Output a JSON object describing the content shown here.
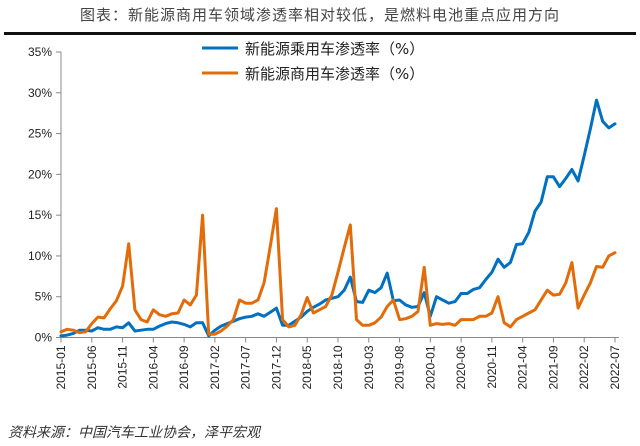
{
  "title": "图表：新能源商用车领域渗透率相对较低，是燃料电池重点应用方向",
  "source": "资料来源：中国汽车工业协会，泽平宏观",
  "chart_data": {
    "type": "line",
    "xlabel": "",
    "ylabel": "",
    "ylim": [
      0,
      35
    ],
    "yticks": [
      "0%",
      "5%",
      "10%",
      "15%",
      "20%",
      "25%",
      "30%",
      "35%"
    ],
    "xtick_labels": [
      "2015-01",
      "2015-06",
      "2015-11",
      "2016-04",
      "2016-09",
      "2017-02",
      "2017-07",
      "2017-12",
      "2018-05",
      "2018-10",
      "2019-03",
      "2019-08",
      "2020-01",
      "2020-06",
      "2020-11",
      "2021-04",
      "2021-09",
      "2022-02",
      "2022-07"
    ],
    "x_start": "2015-01",
    "x_end": "2022-07",
    "x_frequency": "monthly",
    "grid": false,
    "legend_position": "top-center",
    "series": [
      {
        "name": "新能源乘用车渗透率（%）",
        "color": "#0070C0",
        "values": [
          0.2,
          0.3,
          0.5,
          0.9,
          0.9,
          0.8,
          1.2,
          1.0,
          1.0,
          1.3,
          1.2,
          1.8,
          0.8,
          0.9,
          1.0,
          1.0,
          1.4,
          1.7,
          1.9,
          1.8,
          1.6,
          1.3,
          1.8,
          1.8,
          0.2,
          0.9,
          1.4,
          1.7,
          2.0,
          2.3,
          2.5,
          2.6,
          2.9,
          2.6,
          3.1,
          3.6,
          1.5,
          1.5,
          2.0,
          2.5,
          3.2,
          3.7,
          4.1,
          4.6,
          4.8,
          5.0,
          5.8,
          7.4,
          4.4,
          4.3,
          5.8,
          5.5,
          6.1,
          7.9,
          4.5,
          4.6,
          4.0,
          3.7,
          3.8,
          5.5,
          2.6,
          5.0,
          4.6,
          4.2,
          4.4,
          5.4,
          5.4,
          5.9,
          6.1,
          7.1,
          8.0,
          9.6,
          8.6,
          9.2,
          11.4,
          11.5,
          12.9,
          15.5,
          16.6,
          19.7,
          19.7,
          18.5,
          19.5,
          20.6,
          19.2,
          22.3,
          25.6,
          29.1,
          26.5,
          25.7,
          26.2
        ]
      },
      {
        "name": "新能源商用车渗透率（%）",
        "color": "#E36C0A",
        "values": [
          0.7,
          1.0,
          0.9,
          0.6,
          0.7,
          1.7,
          2.5,
          2.4,
          3.5,
          4.5,
          6.3,
          11.5,
          3.4,
          2.2,
          1.9,
          3.4,
          2.8,
          2.6,
          2.9,
          3.0,
          4.6,
          4.0,
          5.2,
          15.0,
          0.4,
          0.4,
          0.8,
          1.4,
          2.2,
          4.6,
          4.2,
          4.2,
          4.6,
          6.7,
          11.2,
          15.8,
          2.2,
          1.3,
          1.5,
          2.8,
          4.9,
          3.0,
          3.4,
          3.8,
          5.2,
          8.0,
          11.0,
          13.8,
          2.2,
          1.5,
          1.5,
          1.8,
          2.5,
          3.8,
          4.6,
          2.2,
          2.3,
          2.6,
          3.2,
          8.6,
          1.5,
          1.7,
          1.6,
          1.7,
          1.5,
          2.2,
          2.2,
          2.2,
          2.6,
          2.6,
          3.0,
          5.0,
          1.8,
          1.3,
          2.2,
          2.6,
          3.0,
          3.4,
          4.6,
          5.8,
          5.2,
          5.3,
          6.7,
          9.2,
          3.6,
          5.2,
          6.7,
          8.7,
          8.6,
          10.0,
          10.4
        ]
      }
    ]
  }
}
